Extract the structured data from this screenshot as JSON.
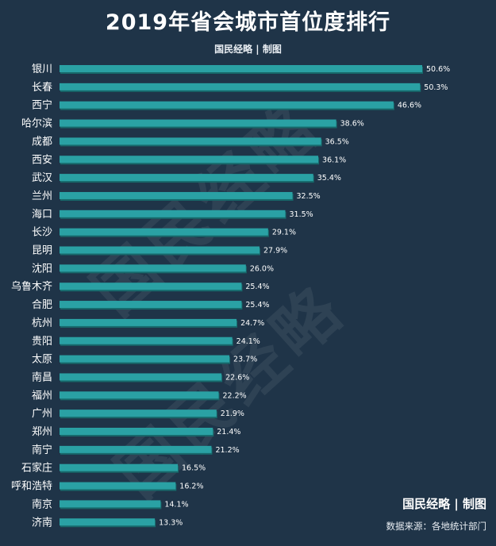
{
  "header": {
    "title": "2019年省会城市首位度排行",
    "byline": "国民经略 | 制图"
  },
  "watermark": "国民经略",
  "footer": {
    "brand": "国民经略 | 制图",
    "source": "数据来源：各地统计部门"
  },
  "colors": {
    "background": "#1f3448",
    "bar": "#2aa1a4",
    "bar_shadow": "#17696b",
    "text": "#ffffff"
  },
  "chart_data": {
    "type": "bar",
    "orientation": "horizontal",
    "title": "2019年省会城市首位度排行",
    "xlabel": "",
    "ylabel": "",
    "unit": "%",
    "grid": false,
    "xlim": [
      0,
      50.6
    ],
    "categories": [
      "银川",
      "长春",
      "西宁",
      "哈尔滨",
      "成都",
      "西安",
      "武汉",
      "兰州",
      "海口",
      "长沙",
      "昆明",
      "沈阳",
      "乌鲁木齐",
      "合肥",
      "杭州",
      "贵阳",
      "太原",
      "南昌",
      "福州",
      "广州",
      "郑州",
      "南宁",
      "石家庄",
      "呼和浩特",
      "南京",
      "济南"
    ],
    "values": [
      50.6,
      50.3,
      46.6,
      38.6,
      36.5,
      36.1,
      35.4,
      32.5,
      31.5,
      29.1,
      27.9,
      26.0,
      25.4,
      25.4,
      24.7,
      24.1,
      23.7,
      22.6,
      22.2,
      21.9,
      21.4,
      21.2,
      16.5,
      16.2,
      14.1,
      13.3
    ],
    "value_labels": [
      "50.6%",
      "50.3%",
      "46.6%",
      "38.6%",
      "36.5%",
      "36.1%",
      "35.4%",
      "32.5%",
      "31.5%",
      "29.1%",
      "27.9%",
      "26.0%",
      "25.4%",
      "25.4%",
      "24.7%",
      "24.1%",
      "23.7%",
      "22.6%",
      "22.2%",
      "21.9%",
      "21.4%",
      "21.2%",
      "16.5%",
      "16.2%",
      "14.1%",
      "13.3%"
    ]
  }
}
